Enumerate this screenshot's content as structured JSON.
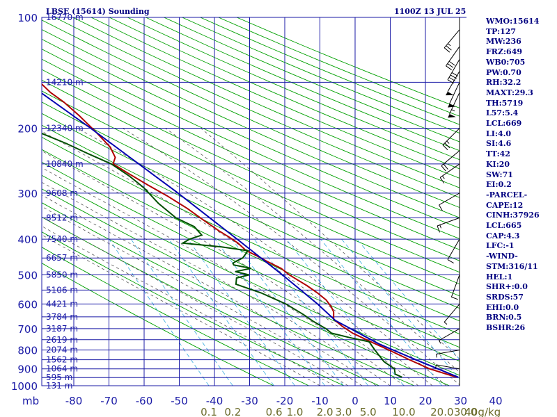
{
  "header": {
    "title": "LBSE (15614) Sounding",
    "datetime": "1100Z 13 JUL 25"
  },
  "indices": [
    "WMO:15614",
    "TP:127",
    "MW:236",
    "FRZ:649",
    "WB0:705",
    "PW:0.70",
    "RH:32.2",
    "MAXT:29.3",
    "TH:5719",
    "L57:5.4",
    "LCL:669",
    "LI:4.0",
    "SI:4.6",
    "TT:42",
    "KI:20",
    "SW:71",
    "EI:0.2",
    "-PARCEL-",
    "CAPE:12",
    "CINH:37926",
    "LCL:665",
    "CAP:4.3",
    "LFC:-1",
    "-WIND-",
    "STM:316/11",
    "HEL:1",
    "SHR+:0.0",
    "SRDS:57",
    "EHI:0.0",
    "BRN:0.5",
    "BSHR:26"
  ],
  "colors": {
    "grid": "#1a1aa6",
    "dry_adiabat": "#00a000",
    "moist_adiabat": "#555555",
    "mixing_ratio": "#33aadd",
    "temperature": "#b00000",
    "dewpoint": "#005000",
    "parcel": "#0000b0",
    "wind_barb": "#000000",
    "labels": "#1a1aa6",
    "mixing_labels": "#6b6b2a"
  },
  "chart_data": {
    "type": "line",
    "title": "",
    "xlabel": "",
    "ylabel": "mb",
    "xlim": [
      -80,
      40
    ],
    "ylim": [
      1000,
      100
    ],
    "y_scale": "log",
    "grid": true,
    "legend": "none",
    "y_unit_label": "mb",
    "pressure_levels": [
      100,
      200,
      300,
      400,
      500,
      600,
      700,
      800,
      900,
      1000
    ],
    "temperature_ticks": [
      -80,
      -70,
      -60,
      -50,
      -40,
      -30,
      -20,
      -10,
      0,
      10,
      20,
      30,
      40
    ],
    "temperature_tick_labels": [
      "-80",
      "-70",
      "-60",
      "-50",
      "-40",
      "-30",
      "-20",
      "-10",
      "0",
      "10",
      "20",
      "30",
      "40"
    ],
    "height_labels": [
      {
        "p": 100,
        "text": "16770 m"
      },
      {
        "p": 150,
        "text": "14210 m"
      },
      {
        "p": 200,
        "text": "12340 m"
      },
      {
        "p": 250,
        "text": "10840 m"
      },
      {
        "p": 300,
        "text": "9608 m"
      },
      {
        "p": 350,
        "text": "8512 m"
      },
      {
        "p": 400,
        "text": "7540 m"
      },
      {
        "p": 450,
        "text": "6657 m"
      },
      {
        "p": 500,
        "text": "5850 m"
      },
      {
        "p": 550,
        "text": "5106 m"
      },
      {
        "p": 600,
        "text": "4421 m"
      },
      {
        "p": 650,
        "text": "3784 m"
      },
      {
        "p": 700,
        "text": "3187 m"
      },
      {
        "p": 750,
        "text": "2619 m"
      },
      {
        "p": 800,
        "text": "2074 m"
      },
      {
        "p": 850,
        "text": "1562 m"
      },
      {
        "p": 900,
        "text": "1064 m"
      },
      {
        "p": 950,
        "text": "595 m"
      },
      {
        "p": 1000,
        "text": "131 m"
      }
    ],
    "mixing_ratio_labels": [
      {
        "w": 0.1,
        "text": "0.1"
      },
      {
        "w": 0.2,
        "text": "0.2"
      },
      {
        "w": 0.6,
        "text": "0.6"
      },
      {
        "w": 1.0,
        "text": "1.0"
      },
      {
        "w": 2.0,
        "text": "2.0"
      },
      {
        "w": 3.0,
        "text": "3.0"
      },
      {
        "w": 5.0,
        "text": "5.0"
      },
      {
        "w": 10.0,
        "text": "10.0"
      },
      {
        "w": 20.0,
        "text": "20.0"
      },
      {
        "w": 30.0,
        "text": "30.0"
      },
      {
        "w": 40.0,
        "text": "40g/kg"
      }
    ],
    "series": [
      {
        "name": "",
        "key": "temperature",
        "points": [
          [
            948,
            30.0
          ],
          [
            900,
            23.5
          ],
          [
            850,
            19.0
          ],
          [
            800,
            14.5
          ],
          [
            760,
            10.5
          ],
          [
            720,
            6.5
          ],
          [
            690,
            4.5
          ],
          [
            660,
            3.0
          ],
          [
            630,
            4.0
          ],
          [
            610,
            4.0
          ],
          [
            585,
            3.5
          ],
          [
            560,
            2.0
          ],
          [
            535,
            0.0
          ],
          [
            515,
            -2.0
          ],
          [
            500,
            -3.5
          ],
          [
            480,
            -5.0
          ],
          [
            460,
            -8.0
          ],
          [
            445,
            -10.0
          ],
          [
            430,
            -12.5
          ],
          [
            410,
            -13.8
          ],
          [
            395,
            -15.5
          ],
          [
            380,
            -17.5
          ],
          [
            355,
            -20.5
          ],
          [
            330,
            -23.5
          ],
          [
            305,
            -27.5
          ],
          [
            285,
            -31.5
          ],
          [
            265,
            -35.5
          ],
          [
            250,
            -38.5
          ],
          [
            240,
            -37.0
          ],
          [
            225,
            -37.0
          ],
          [
            205,
            -39.0
          ],
          [
            185,
            -41.5
          ],
          [
            170,
            -44.0
          ],
          [
            160,
            -46.5
          ],
          [
            148,
            -48.5
          ],
          [
            142,
            -51.0
          ],
          [
            137,
            -51.5
          ],
          [
            130,
            -55.5
          ],
          [
            125,
            -58.5
          ],
          [
            110,
            -59.0
          ],
          [
            100,
            -59.3
          ]
        ]
      },
      {
        "name": "",
        "key": "dewpoint",
        "points": [
          [
            948,
            14.5
          ],
          [
            930,
            13.0
          ],
          [
            900,
            13.5
          ],
          [
            860,
            11.5
          ],
          [
            800,
            10.5
          ],
          [
            760,
            10.0
          ],
          [
            740,
            5.0
          ],
          [
            720,
            0.5
          ],
          [
            700,
            -0.5
          ],
          [
            670,
            -3.0
          ],
          [
            640,
            -5.0
          ],
          [
            600,
            -8.5
          ],
          [
            560,
            -14.0
          ],
          [
            530,
            -20.0
          ],
          [
            510,
            -19.0
          ],
          [
            500,
            -15.0
          ],
          [
            490,
            -18.5
          ],
          [
            480,
            -13.5
          ],
          [
            470,
            -18.0
          ],
          [
            465,
            -18.0
          ],
          [
            460,
            -17.0
          ],
          [
            450,
            -14.5
          ],
          [
            430,
            -12.0
          ],
          [
            420,
            -19.0
          ],
          [
            410,
            -29.5
          ],
          [
            400,
            -27.0
          ],
          [
            390,
            -23.0
          ],
          [
            370,
            -24.0
          ],
          [
            350,
            -28.0
          ],
          [
            320,
            -31.0
          ],
          [
            290,
            -33.0
          ],
          [
            270,
            -35.5
          ],
          [
            250,
            -39.0
          ],
          [
            235,
            -44.0
          ],
          [
            220,
            -49.0
          ],
          [
            200,
            -57.5
          ],
          [
            180,
            -61.0
          ],
          [
            170,
            -62.5
          ]
        ]
      },
      {
        "name": "",
        "key": "parcel",
        "points": [
          [
            948,
            30.5
          ],
          [
            850,
            20.8
          ],
          [
            770,
            12.5
          ],
          [
            665,
            3.3
          ],
          [
            600,
            0.5
          ],
          [
            500,
            -5.5
          ],
          [
            400,
            -13.5
          ],
          [
            300,
            -24.0
          ],
          [
            200,
            -40.0
          ],
          [
            150,
            -52.0
          ],
          [
            145,
            -53.5
          ]
        ]
      }
    ],
    "wind_barbs": [
      {
        "p": 108,
        "dir": 320,
        "spd": 25
      },
      {
        "p": 120,
        "dir": 325,
        "spd": 30
      },
      {
        "p": 130,
        "dir": 330,
        "spd": 40
      },
      {
        "p": 140,
        "dir": 330,
        "spd": 50
      },
      {
        "p": 150,
        "dir": 335,
        "spd": 50
      },
      {
        "p": 160,
        "dir": 335,
        "spd": 55
      },
      {
        "p": 200,
        "dir": 315,
        "spd": 25
      },
      {
        "p": 230,
        "dir": 310,
        "spd": 20
      },
      {
        "p": 250,
        "dir": 305,
        "spd": 15
      },
      {
        "p": 300,
        "dir": 300,
        "spd": 10
      },
      {
        "p": 350,
        "dir": 290,
        "spd": 15
      },
      {
        "p": 400,
        "dir": 330,
        "spd": 10
      },
      {
        "p": 500,
        "dir": 340,
        "spd": 10
      },
      {
        "p": 600,
        "dir": 320,
        "spd": 5
      },
      {
        "p": 700,
        "dir": 300,
        "spd": 5
      },
      {
        "p": 800,
        "dir": 280,
        "spd": 5
      },
      {
        "p": 900,
        "dir": 260,
        "spd": 5
      }
    ]
  }
}
